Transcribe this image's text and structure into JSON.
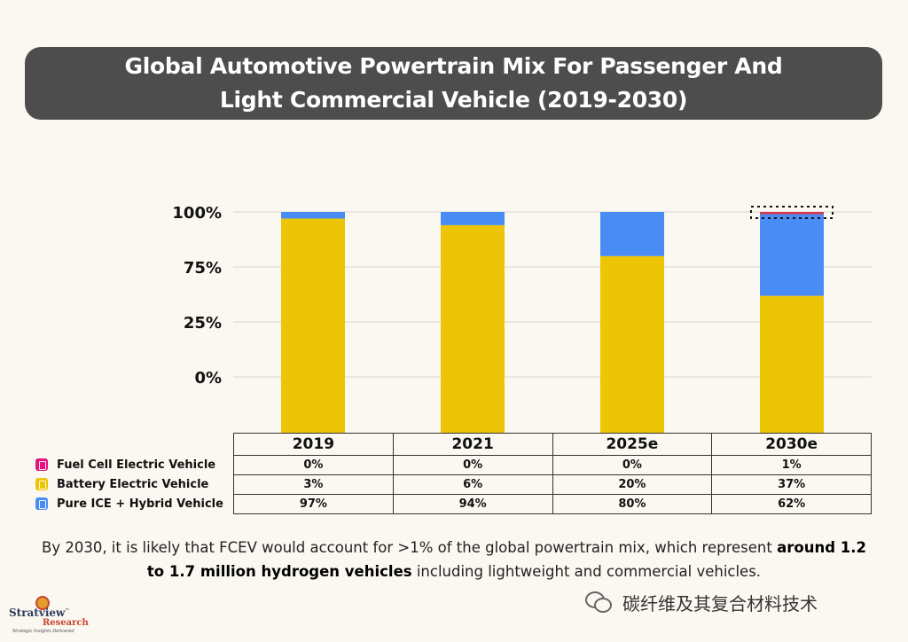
{
  "title": {
    "line1": "Global Automotive Powertrain Mix For Passenger And",
    "line2": "Light Commercial Vehicle (2019-2030)"
  },
  "colors": {
    "fcev": "#e8127c",
    "bev": "#ecc606",
    "ice": "#4a8cf5",
    "fcev_top_stripe": "#e0364f"
  },
  "chart_data": {
    "type": "bar",
    "stacked": true,
    "categories": [
      "2019",
      "2021",
      "2025e",
      "2030e"
    ],
    "y_tick_labels": [
      "100%",
      "75%",
      "25%",
      "0%"
    ],
    "grid": true,
    "series": [
      {
        "name": "Fuel Cell Electric Vehicle",
        "values": [
          0,
          0,
          0,
          1
        ],
        "display": [
          "0%",
          "0%",
          "0%",
          "1%"
        ],
        "color": "#e8127c",
        "icon": "fuel-pump-icon"
      },
      {
        "name": "Battery Electric Vehicle",
        "values": [
          3,
          6,
          20,
          37
        ],
        "display": [
          "3%",
          "6%",
          "20%",
          "37%"
        ],
        "color": "#ecc606",
        "icon": "battery-icon"
      },
      {
        "name": "Pure ICE + Hybrid Vehicle",
        "values": [
          97,
          94,
          80,
          62
        ],
        "display": [
          "97%",
          "94%",
          "80%",
          "62%"
        ],
        "color": "#4a8cf5",
        "icon": "car-icon"
      }
    ],
    "bar_fill_levels": [
      {
        "yellow_top": 97,
        "blue_top": 100,
        "red_band": false
      },
      {
        "yellow_top": 94,
        "blue_top": 100,
        "red_band": false
      },
      {
        "yellow_top": 80,
        "blue_top": 100,
        "red_band": false
      },
      {
        "yellow_top": 62,
        "blue_top": 99,
        "red_band": true
      }
    ]
  },
  "footnote": {
    "text_before": "By 2030, it is likely that FCEV would account for >1% of the global powertrain mix, which represent ",
    "bold": "around 1.2 to 1.7 million hydrogen vehicles",
    "text_after": " including lightweight and commercial vehicles."
  },
  "logo": {
    "name": "Stratview",
    "tm": "™",
    "sub": "Research",
    "tagline": "Strategic Insights Delivered"
  },
  "watermark": "碳纤维及其复合材料技术"
}
